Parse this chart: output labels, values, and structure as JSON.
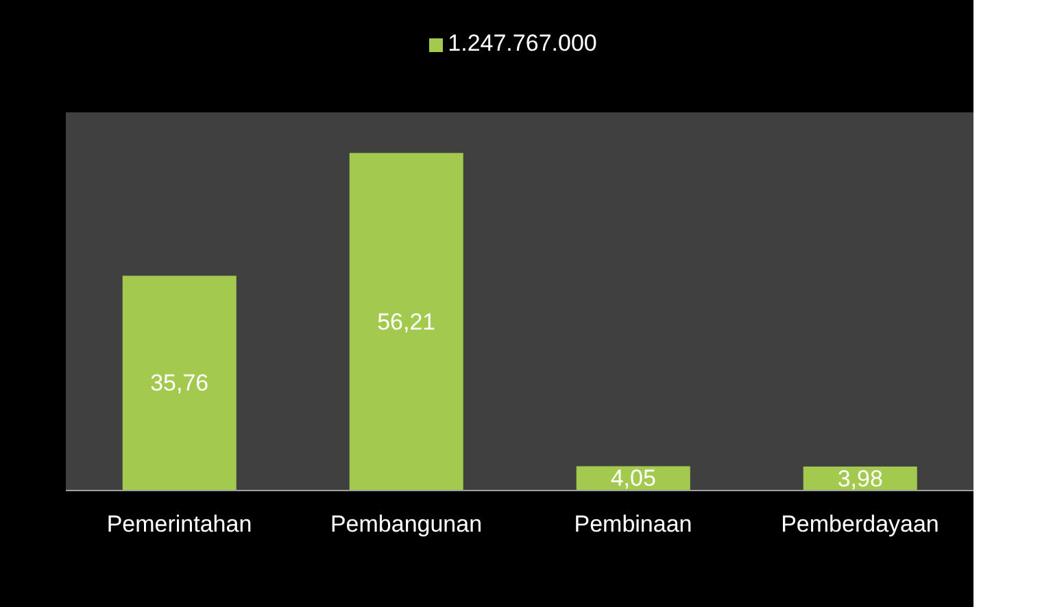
{
  "chart_data": {
    "type": "bar",
    "categories": [
      "Pemerintahan",
      "Pembangunan",
      "Pembinaan",
      "Pemberdayaan"
    ],
    "series": [
      {
        "name": "1.247.767.000",
        "color": "#a3c94f",
        "values": [
          35.76,
          56.21,
          4.05,
          3.98
        ],
        "value_labels": [
          "35,76",
          "56,21",
          "4,05",
          "3,98"
        ]
      }
    ],
    "legend": "top",
    "grid": false,
    "tick_labels": "x"
  }
}
